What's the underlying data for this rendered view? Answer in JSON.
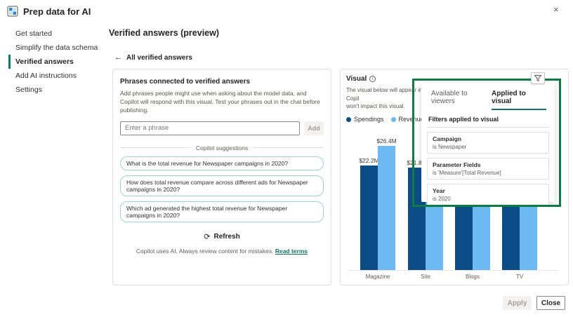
{
  "dialog": {
    "title": "Prep data for AI"
  },
  "icons": {
    "close": "×",
    "back": "←",
    "refresh": "⟳",
    "info": "i"
  },
  "sidebar": {
    "items": [
      {
        "label": "Get started"
      },
      {
        "label": "Simplify the data schema"
      },
      {
        "label": "Verified answers"
      },
      {
        "label": "Add AI instructions"
      },
      {
        "label": "Settings"
      }
    ]
  },
  "main": {
    "page_title": "Verified answers (preview)",
    "back_link": "All verified answers"
  },
  "phrases_card": {
    "title": "Phrases connected to verified answers",
    "description": "Add phrases people might use when asking about the model data, and Copilot will respond with this visual. Test your phrases out in the chat before publishing.",
    "input_placeholder": "Enter a phrase",
    "add_button": "Add",
    "suggestions_divider": "Copilot suggestions",
    "suggestions": [
      "What is the total revenue for Newspaper campaigns in 2020?",
      "How does total revenue compare across different ads for Newspaper campaigns in 2020?",
      "Which ad generated the highest total revenue for Newspaper campaigns in 2020?"
    ],
    "refresh_button": "Refresh",
    "disclaimer": "Copilot uses AI. Always review content for mistakes.",
    "disclaimer_link": "Read terms"
  },
  "visual_card": {
    "title": "Visual",
    "description_line1": "The visual below will appear in Copil",
    "description_line2": "won't impact this visual."
  },
  "filter_popup": {
    "tabs": [
      {
        "label": "Available to viewers",
        "active": false
      },
      {
        "label": "Applied to visual",
        "active": true
      }
    ],
    "section_title": "Filters applied to visual",
    "filters": [
      {
        "name": "Campaign",
        "value": "is Newspaper"
      },
      {
        "name": "Parameter Fields",
        "value": "is 'Measure'[Total Revenue]"
      },
      {
        "name": "Year",
        "value": "is 2020"
      }
    ]
  },
  "footer": {
    "apply_button": "Apply",
    "close_button": "Close"
  },
  "colors": {
    "accent_teal": "#117865",
    "annotation_green": "#0e7b45",
    "spendings_blue": "#0c4d87",
    "revenue_blue": "#6cb9f4"
  },
  "chart_data": {
    "type": "bar",
    "title": "",
    "categories": [
      "Magazine",
      "Site",
      "Blogs",
      "TV"
    ],
    "series": [
      {
        "name": "Spendings",
        "color": "#0c4d87",
        "values": [
          22.2,
          21.8,
          15.0,
          13.5
        ],
        "labels": [
          "$22.2M",
          "$21.8M",
          "",
          ""
        ]
      },
      {
        "name": "Revenue",
        "color": "#6cb9f4",
        "values": [
          26.4,
          18.0,
          16.0,
          14.5
        ],
        "labels": [
          "$26.4M",
          "",
          "",
          ""
        ]
      }
    ],
    "ylim": [
      0,
      28
    ],
    "grid": false,
    "legend_position": "top-left",
    "value_unit": "$M"
  }
}
